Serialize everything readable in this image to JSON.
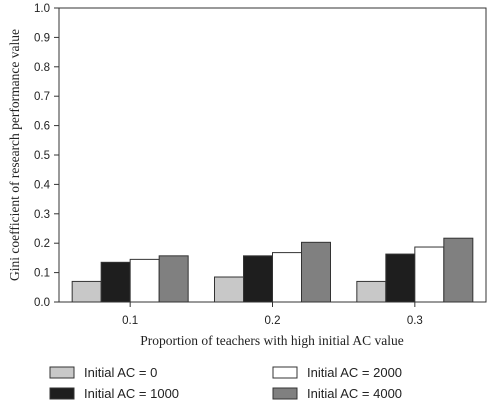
{
  "chart_data": {
    "type": "bar",
    "xlabel": "Proportion of teachers with high initial AC value",
    "ylabel": "Gini coefficient of research performance value",
    "categories": [
      "0.1",
      "0.2",
      "0.3"
    ],
    "ylim": [
      0,
      1.0
    ],
    "yticks": [
      "0.0",
      "0.1",
      "0.2",
      "0.3",
      "0.4",
      "0.5",
      "0.6",
      "0.7",
      "0.8",
      "0.9",
      "1.0"
    ],
    "grid": false,
    "legend_position": "bottom",
    "series": [
      {
        "name": "Initial AC = 0",
        "color": "#c8c8c8",
        "values": [
          0.07,
          0.085,
          0.07
        ]
      },
      {
        "name": "Initial AC = 1000",
        "color": "#1e1e1e",
        "values": [
          0.135,
          0.157,
          0.163
        ]
      },
      {
        "name": "Initial AC = 2000",
        "color": "#ffffff",
        "values": [
          0.145,
          0.168,
          0.187
        ]
      },
      {
        "name": "Initial AC = 4000",
        "color": "#808080",
        "values": [
          0.157,
          0.203,
          0.217
        ]
      }
    ]
  }
}
